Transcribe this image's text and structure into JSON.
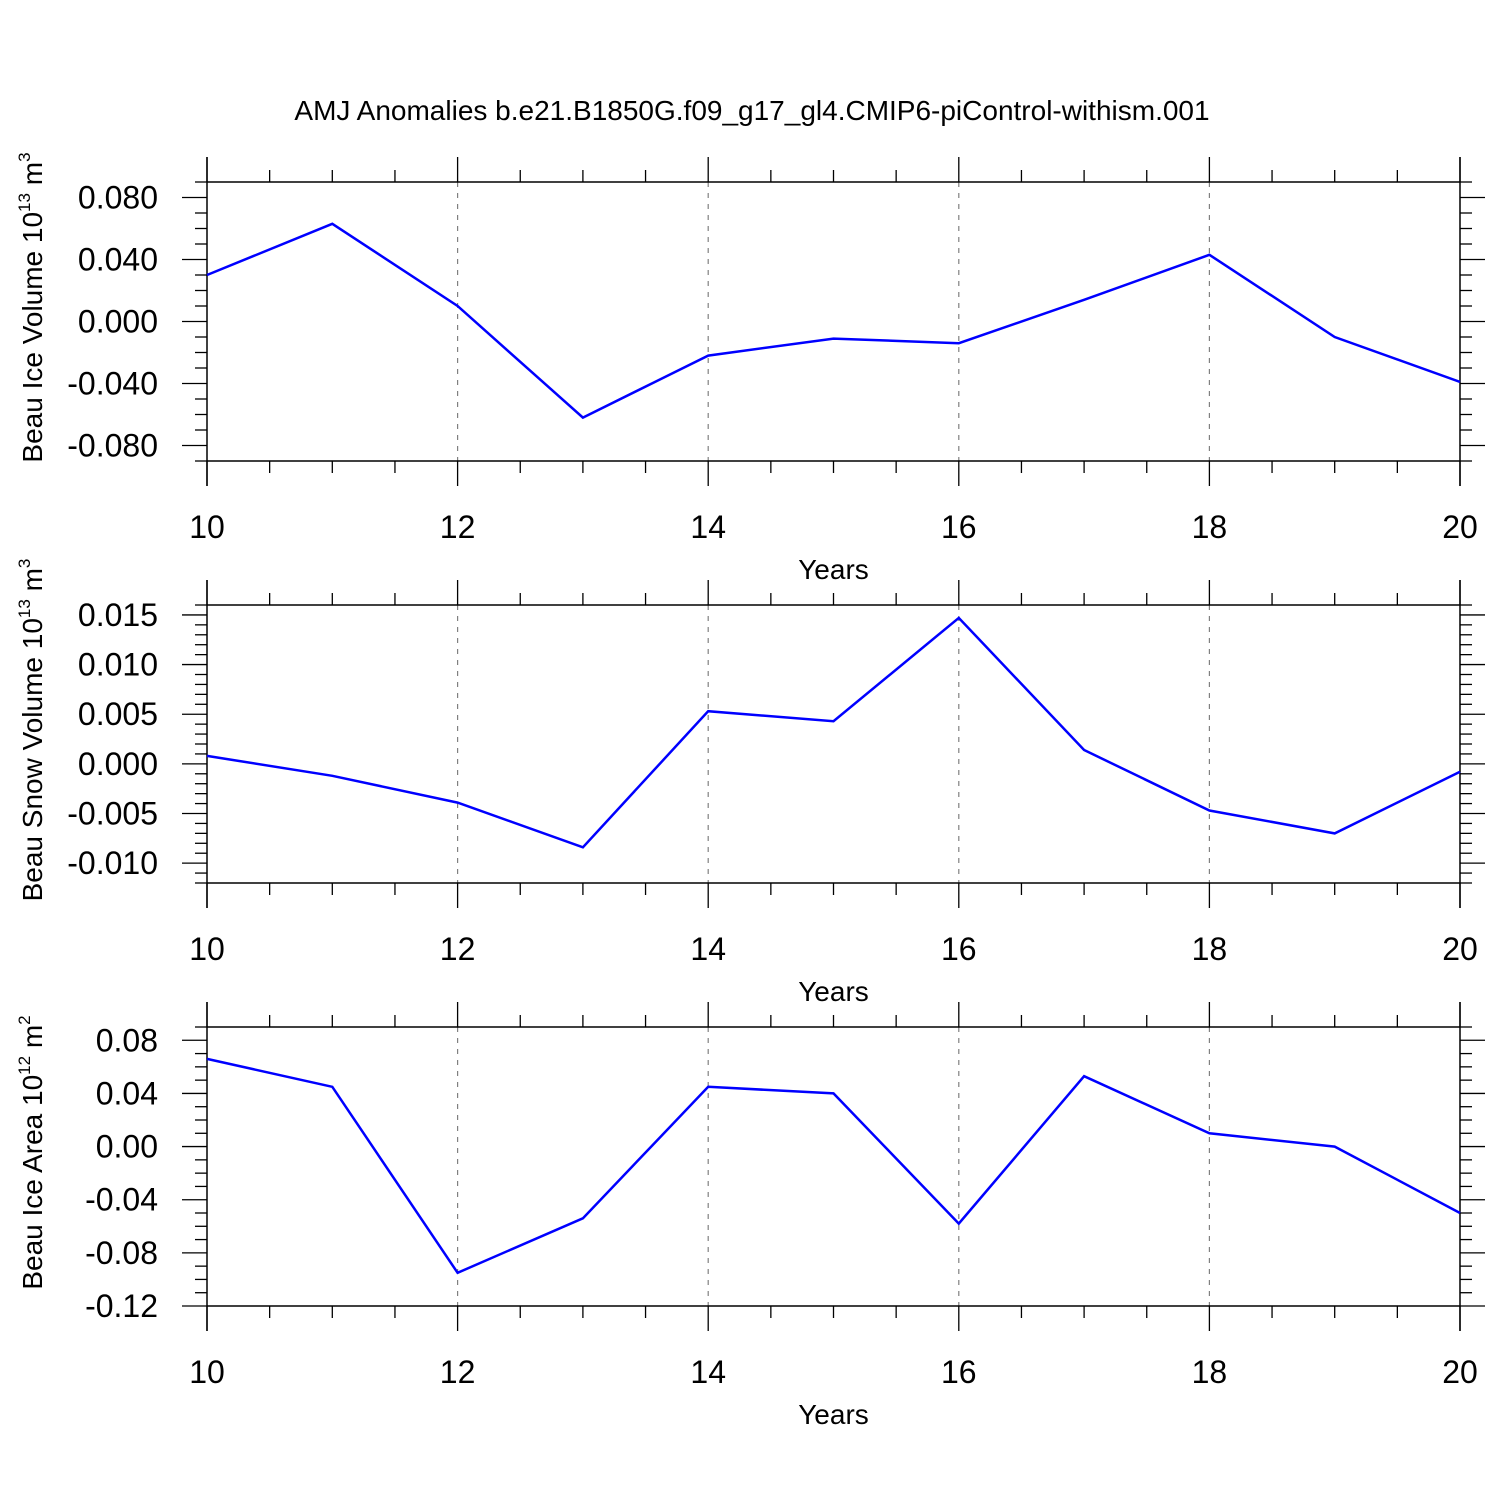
{
  "title": "AMJ Anomalies b.e21.B1850G.f09_g17_gl4.CMIP6-piControl-withism.001",
  "colors": {
    "line": "#0000ff",
    "axis": "#000000",
    "grid": "#808080",
    "background": "#ffffff"
  },
  "chart_data": [
    {
      "type": "line",
      "ylabel": {
        "text": "Beau Ice Volume 10",
        "exp": "13",
        "unit": " m",
        "unit_exp": "3"
      },
      "xlabel": "Years",
      "xlim": [
        10,
        20
      ],
      "ylim": [
        -0.09,
        0.09
      ],
      "x_ticks": [
        10,
        12,
        14,
        16,
        18,
        20
      ],
      "x_tick_labels": [
        "10",
        "12",
        "14",
        "16",
        "18",
        "20"
      ],
      "y_ticks": [
        0.08,
        0.04,
        0.0,
        -0.04,
        -0.08
      ],
      "y_tick_labels": [
        "0.080",
        "0.040",
        "0.000",
        "-0.040",
        "-0.080"
      ],
      "y_minor_step": 0.01,
      "grid": "vertical dashed at major x ticks",
      "series": [
        {
          "x": [
            10,
            11,
            12,
            13,
            14,
            15,
            16,
            17,
            18,
            19,
            20
          ],
          "values": [
            0.03,
            0.063,
            0.01,
            -0.062,
            -0.022,
            -0.011,
            -0.014,
            0.014,
            0.043,
            -0.01,
            -0.039
          ]
        }
      ]
    },
    {
      "type": "line",
      "ylabel": {
        "text": "Beau Snow Volume 10",
        "exp": "13",
        "unit": " m",
        "unit_exp": "3"
      },
      "xlabel": "Years",
      "xlim": [
        10,
        20
      ],
      "ylim": [
        -0.012,
        0.016
      ],
      "x_ticks": [
        10,
        12,
        14,
        16,
        18,
        20
      ],
      "x_tick_labels": [
        "10",
        "12",
        "14",
        "16",
        "18",
        "20"
      ],
      "y_ticks": [
        0.015,
        0.01,
        0.005,
        0.0,
        -0.005,
        -0.01
      ],
      "y_tick_labels": [
        "0.015",
        "0.010",
        "0.005",
        "0.000",
        "-0.005",
        "-0.010"
      ],
      "y_minor_step": 0.001,
      "grid": "vertical dashed at major x ticks",
      "series": [
        {
          "x": [
            10,
            11,
            12,
            13,
            14,
            15,
            16,
            17,
            18,
            19,
            20
          ],
          "values": [
            0.0008,
            -0.0012,
            -0.0039,
            -0.0084,
            0.0053,
            0.0043,
            0.0147,
            0.0014,
            -0.0047,
            -0.007,
            -0.0008
          ]
        }
      ]
    },
    {
      "type": "line",
      "ylabel": {
        "text": "Beau Ice Area 10",
        "exp": "12",
        "unit": " m",
        "unit_exp": "2"
      },
      "xlabel": "Years",
      "xlim": [
        10,
        20
      ],
      "ylim": [
        -0.12,
        0.09
      ],
      "x_ticks": [
        10,
        12,
        14,
        16,
        18,
        20
      ],
      "x_tick_labels": [
        "10",
        "12",
        "14",
        "16",
        "18",
        "20"
      ],
      "y_ticks": [
        0.08,
        0.04,
        0.0,
        -0.04,
        -0.08,
        -0.12
      ],
      "y_tick_labels": [
        "0.08",
        "0.04",
        "0.00",
        "-0.04",
        "-0.08",
        "-0.12"
      ],
      "y_minor_step": 0.01,
      "grid": "vertical dashed at major x ticks",
      "series": [
        {
          "x": [
            10,
            11,
            12,
            13,
            14,
            15,
            16,
            17,
            18,
            19,
            20
          ],
          "values": [
            0.066,
            0.045,
            -0.095,
            -0.054,
            0.045,
            0.04,
            -0.058,
            0.053,
            0.01,
            0.0,
            -0.05
          ]
        }
      ]
    }
  ]
}
